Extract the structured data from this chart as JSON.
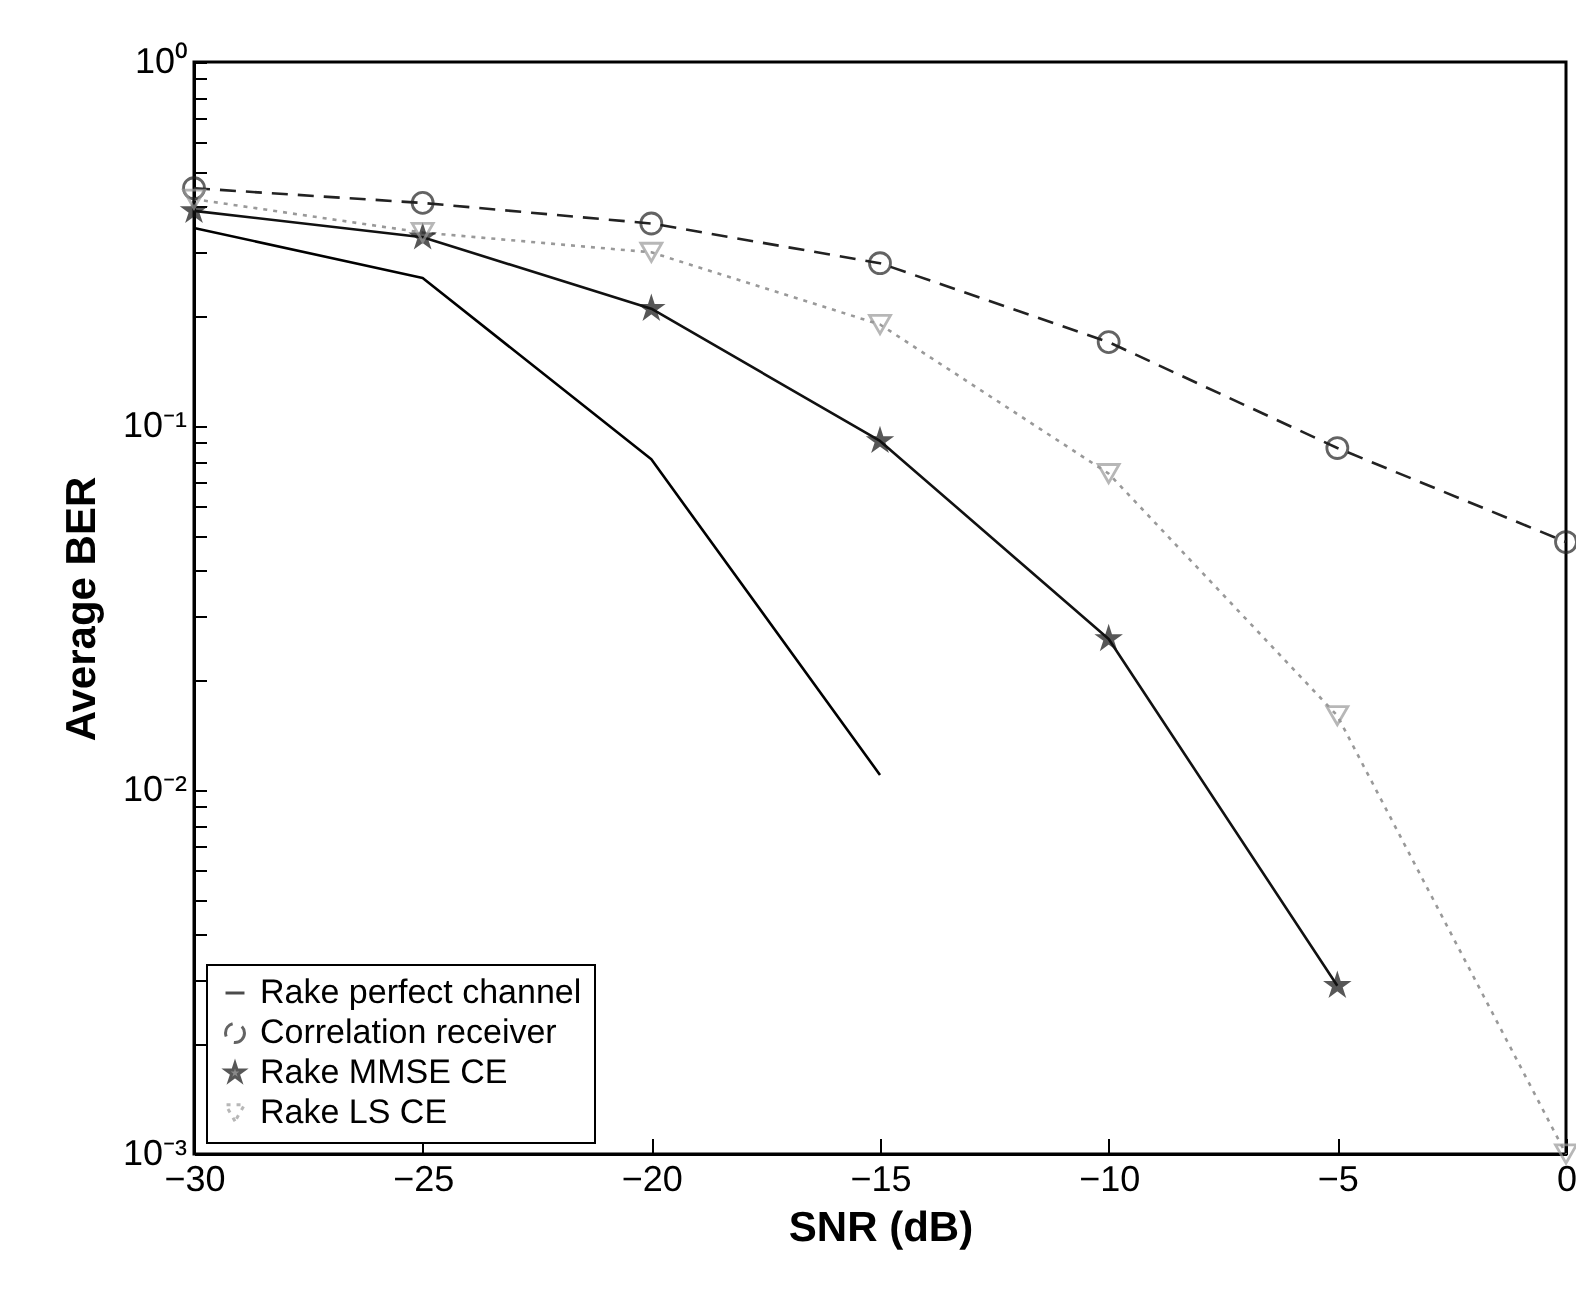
{
  "chart_data": {
    "type": "line",
    "xlabel": "SNR (dB)",
    "ylabel": "Average BER",
    "x": [
      -30,
      -25,
      -20,
      -15,
      -10,
      -5,
      0
    ],
    "xlim": [
      -30,
      0
    ],
    "xticks": [
      -30,
      -25,
      -20,
      -15,
      -10,
      -5,
      0
    ],
    "ylim": [
      0.001,
      1
    ],
    "log": "y",
    "yticks": [
      {
        "value": 0.001,
        "label": "10⁻³"
      },
      {
        "value": 0.002,
        "label": null
      },
      {
        "value": 0.003,
        "label": null
      },
      {
        "value": 0.004,
        "label": null
      },
      {
        "value": 0.005,
        "label": null
      },
      {
        "value": 0.006,
        "label": null
      },
      {
        "value": 0.007,
        "label": null
      },
      {
        "value": 0.008,
        "label": null
      },
      {
        "value": 0.009,
        "label": null
      },
      {
        "value": 0.01,
        "label": "10⁻²"
      },
      {
        "value": 0.02,
        "label": null
      },
      {
        "value": 0.03,
        "label": null
      },
      {
        "value": 0.04,
        "label": null
      },
      {
        "value": 0.05,
        "label": null
      },
      {
        "value": 0.06,
        "label": null
      },
      {
        "value": 0.07,
        "label": null
      },
      {
        "value": 0.08,
        "label": null
      },
      {
        "value": 0.09,
        "label": null
      },
      {
        "value": 0.1,
        "label": "10⁻¹"
      },
      {
        "value": 0.2,
        "label": null
      },
      {
        "value": 0.3,
        "label": null
      },
      {
        "value": 0.4,
        "label": null
      },
      {
        "value": 0.5,
        "label": null
      },
      {
        "value": 0.6,
        "label": null
      },
      {
        "value": 0.7,
        "label": null
      },
      {
        "value": 0.8,
        "label": null
      },
      {
        "value": 0.9,
        "label": null
      },
      {
        "value": 1,
        "label": "10⁰"
      }
    ],
    "grid": false,
    "legend": "bottom left",
    "series": [
      {
        "name": "Rake perfect channel",
        "color": "#000000",
        "marker": "none",
        "line_style": "solid",
        "values": [
          0.35,
          0.255,
          0.081,
          0.011,
          null,
          null,
          null
        ]
      },
      {
        "name": "Correlation receiver",
        "color": "#222222",
        "marker": "circle",
        "line_style": "dashed",
        "values": [
          0.45,
          0.41,
          0.36,
          0.28,
          0.17,
          0.087,
          0.048
        ]
      },
      {
        "name": "Rake MMSE CE",
        "color": "#111111",
        "marker": "star",
        "line_style": "solid",
        "values": [
          0.39,
          0.33,
          0.21,
          0.091,
          0.026,
          0.0029,
          null
        ]
      },
      {
        "name": "Rake LS CE",
        "color": "#999999",
        "marker": "triangle",
        "line_style": "dotted",
        "values": [
          0.42,
          0.34,
          0.3,
          0.19,
          0.074,
          0.016,
          0.001
        ]
      }
    ]
  }
}
